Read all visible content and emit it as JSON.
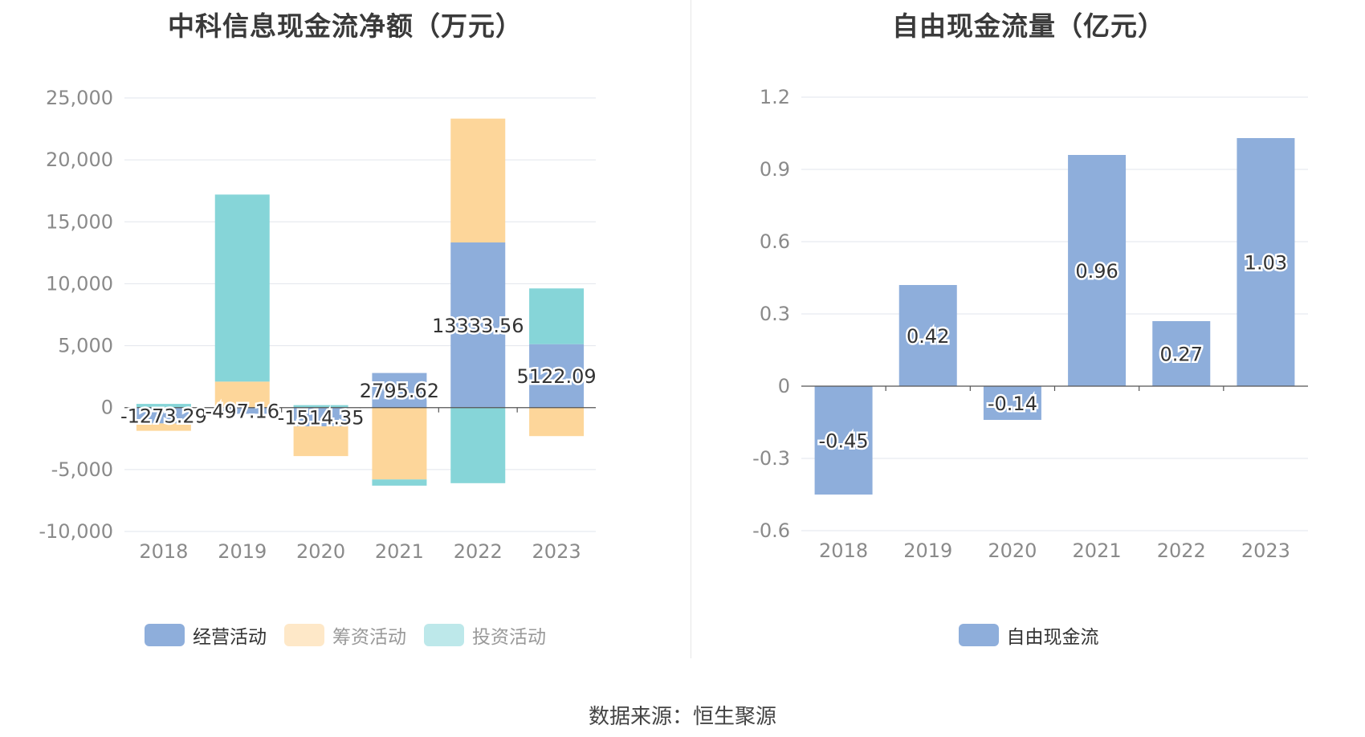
{
  "left": {
    "title": "中科信息现金流净额（万元）",
    "legend": [
      {
        "label": "经营活动",
        "color": "#8eaedb",
        "active": true
      },
      {
        "label": "筹资活动",
        "color": "#fdd69a",
        "active": false
      },
      {
        "label": "投资活动",
        "color": "#86d5d8",
        "active": false
      }
    ]
  },
  "right": {
    "title": "自由现金流量（亿元）",
    "legend": [
      {
        "label": "自由现金流",
        "color": "#8eaedb",
        "active": true
      }
    ]
  },
  "source": "数据来源：恒生聚源",
  "chart_data": [
    {
      "type": "bar",
      "stacked": true,
      "title": "中科信息现金流净额（万元）",
      "categories": [
        "2018",
        "2019",
        "2020",
        "2021",
        "2022",
        "2023"
      ],
      "ylim": [
        -10000,
        25000
      ],
      "yticks": [
        25000,
        20000,
        15000,
        10000,
        5000,
        0,
        -5000,
        -10000
      ],
      "ytick_labels": [
        "25,000",
        "20,000",
        "15,000",
        "10,000",
        "5,000",
        "0",
        "-5,000",
        "-10,000"
      ],
      "grid": true,
      "legend_position": "bottom",
      "series": [
        {
          "name": "经营活动",
          "color": "#8eaedb",
          "values": [
            -1273.29,
            -497.16,
            -1514.35,
            2795.62,
            13333.56,
            5122.09
          ],
          "labels": [
            "-1273.29",
            "-497.16",
            "-1514.35",
            "2795.62",
            "13333.56",
            "5122.09"
          ]
        },
        {
          "name": "筹资活动",
          "color": "#fdd69a",
          "values": [
            -600,
            2100,
            -2400,
            -5800,
            10000,
            -2300
          ]
        },
        {
          "name": "投资活动",
          "color": "#86d5d8",
          "values": [
            300,
            15100,
            200,
            -500,
            -6100,
            4500
          ]
        }
      ]
    },
    {
      "type": "bar",
      "title": "自由现金流量（亿元）",
      "categories": [
        "2018",
        "2019",
        "2020",
        "2021",
        "2022",
        "2023"
      ],
      "ylim": [
        -0.6,
        1.2
      ],
      "yticks": [
        1.2,
        0.9,
        0.6,
        0.3,
        0,
        -0.3,
        -0.6
      ],
      "ytick_labels": [
        "1.2",
        "0.9",
        "0.6",
        "0.3",
        "0",
        "-0.3",
        "-0.6"
      ],
      "grid": true,
      "legend_position": "bottom",
      "series": [
        {
          "name": "自由现金流",
          "color": "#8eaedb",
          "values": [
            -0.45,
            0.42,
            -0.14,
            0.96,
            0.27,
            1.03
          ],
          "labels": [
            "-0.45",
            "0.42",
            "-0.14",
            "0.96",
            "0.27",
            "1.03"
          ]
        }
      ]
    }
  ]
}
